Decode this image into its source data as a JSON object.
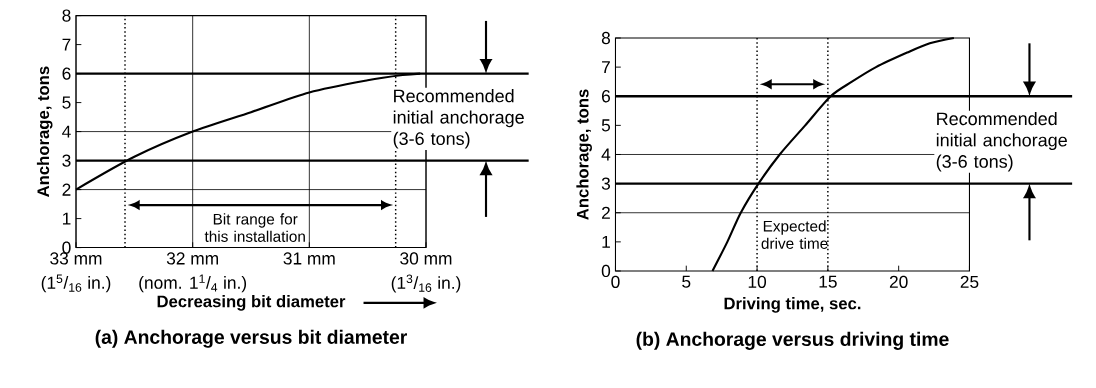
{
  "chart_data": [
    {
      "type": "line",
      "title": "(a) Anchorage versus bit diameter",
      "xlabel": "Decreasing bit diameter",
      "ylabel": "Anchorage, tons",
      "color": "#000000",
      "x": [
        33,
        32.5,
        32,
        31.5,
        31,
        30.5,
        30.2,
        30.05
      ],
      "values": [
        2,
        3.13,
        4,
        4.67,
        5.35,
        5.77,
        5.95,
        6
      ],
      "xlim": [
        33,
        30
      ],
      "ylim": [
        0,
        8
      ],
      "xticks": [
        {
          "value": 33,
          "label": "33 mm"
        },
        {
          "value": 32,
          "label": "32 mm"
        },
        {
          "value": 31,
          "label": "31 mm"
        },
        {
          "value": 30,
          "label": "30 mm"
        }
      ],
      "yticks": [
        0,
        1,
        2,
        3,
        4,
        5,
        6,
        7,
        8
      ],
      "grid": "x",
      "ref_lines": [
        {
          "axis": "y",
          "value": 2,
          "line_style": "solid"
        },
        {
          "axis": "y",
          "value": 4,
          "line_style": "solid"
        },
        {
          "axis": "y",
          "value": 3,
          "color": "#000000"
        },
        {
          "axis": "y",
          "value": 6,
          "color": "#000000"
        },
        {
          "axis": "x",
          "value": 32.58,
          "line_style": "dotted"
        },
        {
          "axis": "x",
          "value": 30.26,
          "line_style": "dotted"
        }
      ],
      "annotations": [
        "Recommended initial anchorage (3-6 tons)",
        "Bit range for this installation",
        "(1$^{5}$/$_{16}$ in.)",
        "(nom. 1$^{1}$/$_{4}$ in.)",
        "(1$^{3}$/$_{16}$ in.)"
      ]
    },
    {
      "type": "line",
      "title": "(b) Anchorage versus driving time",
      "xlabel": "Driving time, sec.",
      "ylabel": "Anchorage, tons",
      "color": "#000000",
      "x": [
        6.85,
        7.9,
        8.85,
        10.1,
        11.6,
        13.4,
        15.2,
        16.7,
        18.4,
        20.6,
        22.2,
        23.9
      ],
      "values": [
        0,
        1,
        2,
        3,
        4,
        5,
        6,
        6.5,
        7,
        7.5,
        7.82,
        8
      ],
      "xlim": [
        0,
        25
      ],
      "ylim": [
        0,
        8
      ],
      "xticks": [
        0,
        5,
        10,
        15,
        20,
        25
      ],
      "yticks": [
        0,
        1,
        2,
        3,
        4,
        5,
        6,
        7,
        8
      ],
      "ref_lines": [
        {
          "axis": "y",
          "value": 2,
          "line_style": "solid"
        },
        {
          "axis": "y",
          "value": 4,
          "line_style": "solid"
        },
        {
          "axis": "y",
          "value": 3,
          "color": "#000000"
        },
        {
          "axis": "y",
          "value": 6,
          "color": "#000000"
        },
        {
          "axis": "x",
          "value": 10,
          "line_style": "dotted"
        },
        {
          "axis": "x",
          "value": 15,
          "line_style": "dotted"
        }
      ],
      "annotations": [
        "Recommended initial anchorage (3-6 tons)",
        "Expected drive time"
      ]
    }
  ]
}
